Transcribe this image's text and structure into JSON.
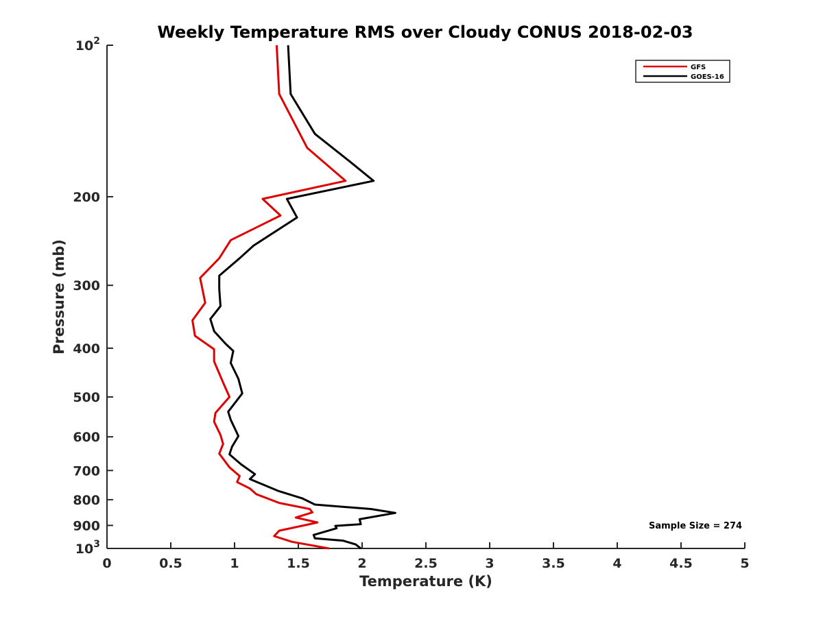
{
  "chart_data": {
    "type": "line",
    "title": "Weekly Temperature RMS over Cloudy CONUS 2018-02-03",
    "xlabel": "Temperature (K)",
    "ylabel": "Pressure (mb)",
    "xlim": [
      0,
      5
    ],
    "ylim": [
      100,
      1000
    ],
    "y_scale": "log",
    "y_reversed": true,
    "x_ticks": [
      0,
      0.5,
      1,
      1.5,
      2,
      2.5,
      3,
      3.5,
      4,
      4.5,
      5
    ],
    "x_tick_labels": [
      "0",
      "0.5",
      "1",
      "1.5",
      "2",
      "2.5",
      "3",
      "3.5",
      "4",
      "4.5",
      "5"
    ],
    "y_ticks": [
      100,
      200,
      300,
      400,
      500,
      600,
      700,
      800,
      900,
      1000
    ],
    "y_tick_labels": [
      {
        "base": "10",
        "exp": "2"
      },
      {
        "base": "200",
        "exp": ""
      },
      {
        "base": "300",
        "exp": ""
      },
      {
        "base": "400",
        "exp": ""
      },
      {
        "base": "500",
        "exp": ""
      },
      {
        "base": "600",
        "exp": ""
      },
      {
        "base": "700",
        "exp": ""
      },
      {
        "base": "800",
        "exp": ""
      },
      {
        "base": "900",
        "exp": ""
      },
      {
        "base": "10",
        "exp": "3"
      }
    ],
    "grid": false,
    "legend_position": "top-right",
    "series": [
      {
        "name": "GFS",
        "color": "#e00000",
        "points": [
          [
            1.33,
            100
          ],
          [
            1.35,
            125
          ],
          [
            1.57,
            160
          ],
          [
            1.87,
            186
          ],
          [
            1.22,
            202
          ],
          [
            1.36,
            218
          ],
          [
            0.97,
            244
          ],
          [
            0.88,
            265
          ],
          [
            0.73,
            290
          ],
          [
            0.77,
            325
          ],
          [
            0.67,
            352
          ],
          [
            0.69,
            378
          ],
          [
            0.84,
            402
          ],
          [
            0.84,
            425
          ],
          [
            0.91,
            468
          ],
          [
            0.96,
            500
          ],
          [
            0.85,
            538
          ],
          [
            0.84,
            560
          ],
          [
            0.89,
            595
          ],
          [
            0.91,
            620
          ],
          [
            0.88,
            648
          ],
          [
            0.96,
            690
          ],
          [
            1.04,
            718
          ],
          [
            1.02,
            738
          ],
          [
            1.12,
            760
          ],
          [
            1.17,
            780
          ],
          [
            1.35,
            812
          ],
          [
            1.59,
            835
          ],
          [
            1.61,
            848
          ],
          [
            1.48,
            868
          ],
          [
            1.65,
            888
          ],
          [
            1.35,
            922
          ],
          [
            1.31,
            945
          ],
          [
            1.45,
            970
          ],
          [
            1.74,
            1000
          ]
        ]
      },
      {
        "name": "GOES-16",
        "color": "#000000",
        "points": [
          [
            1.42,
            100
          ],
          [
            1.44,
            125
          ],
          [
            1.63,
            150
          ],
          [
            1.9,
            170
          ],
          [
            2.09,
            186
          ],
          [
            1.41,
            202
          ],
          [
            1.49,
            220
          ],
          [
            1.15,
            250
          ],
          [
            1.04,
            265
          ],
          [
            0.88,
            287
          ],
          [
            0.88,
            305
          ],
          [
            0.89,
            330
          ],
          [
            0.81,
            350
          ],
          [
            0.84,
            370
          ],
          [
            0.93,
            392
          ],
          [
            0.99,
            405
          ],
          [
            0.97,
            428
          ],
          [
            1.03,
            460
          ],
          [
            1.06,
            492
          ],
          [
            0.95,
            535
          ],
          [
            0.97,
            555
          ],
          [
            1.03,
            598
          ],
          [
            0.98,
            628
          ],
          [
            0.96,
            650
          ],
          [
            1.05,
            680
          ],
          [
            1.16,
            712
          ],
          [
            1.12,
            728
          ],
          [
            1.34,
            768
          ],
          [
            1.53,
            795
          ],
          [
            1.63,
            818
          ],
          [
            2.07,
            835
          ],
          [
            2.26,
            850
          ],
          [
            1.98,
            875
          ],
          [
            1.99,
            895
          ],
          [
            1.79,
            902
          ],
          [
            1.8,
            912
          ],
          [
            1.62,
            940
          ],
          [
            1.63,
            955
          ],
          [
            1.85,
            965
          ],
          [
            1.95,
            982
          ],
          [
            1.99,
            1000
          ]
        ]
      }
    ],
    "annotations": [
      "Sample Size = 274"
    ]
  }
}
